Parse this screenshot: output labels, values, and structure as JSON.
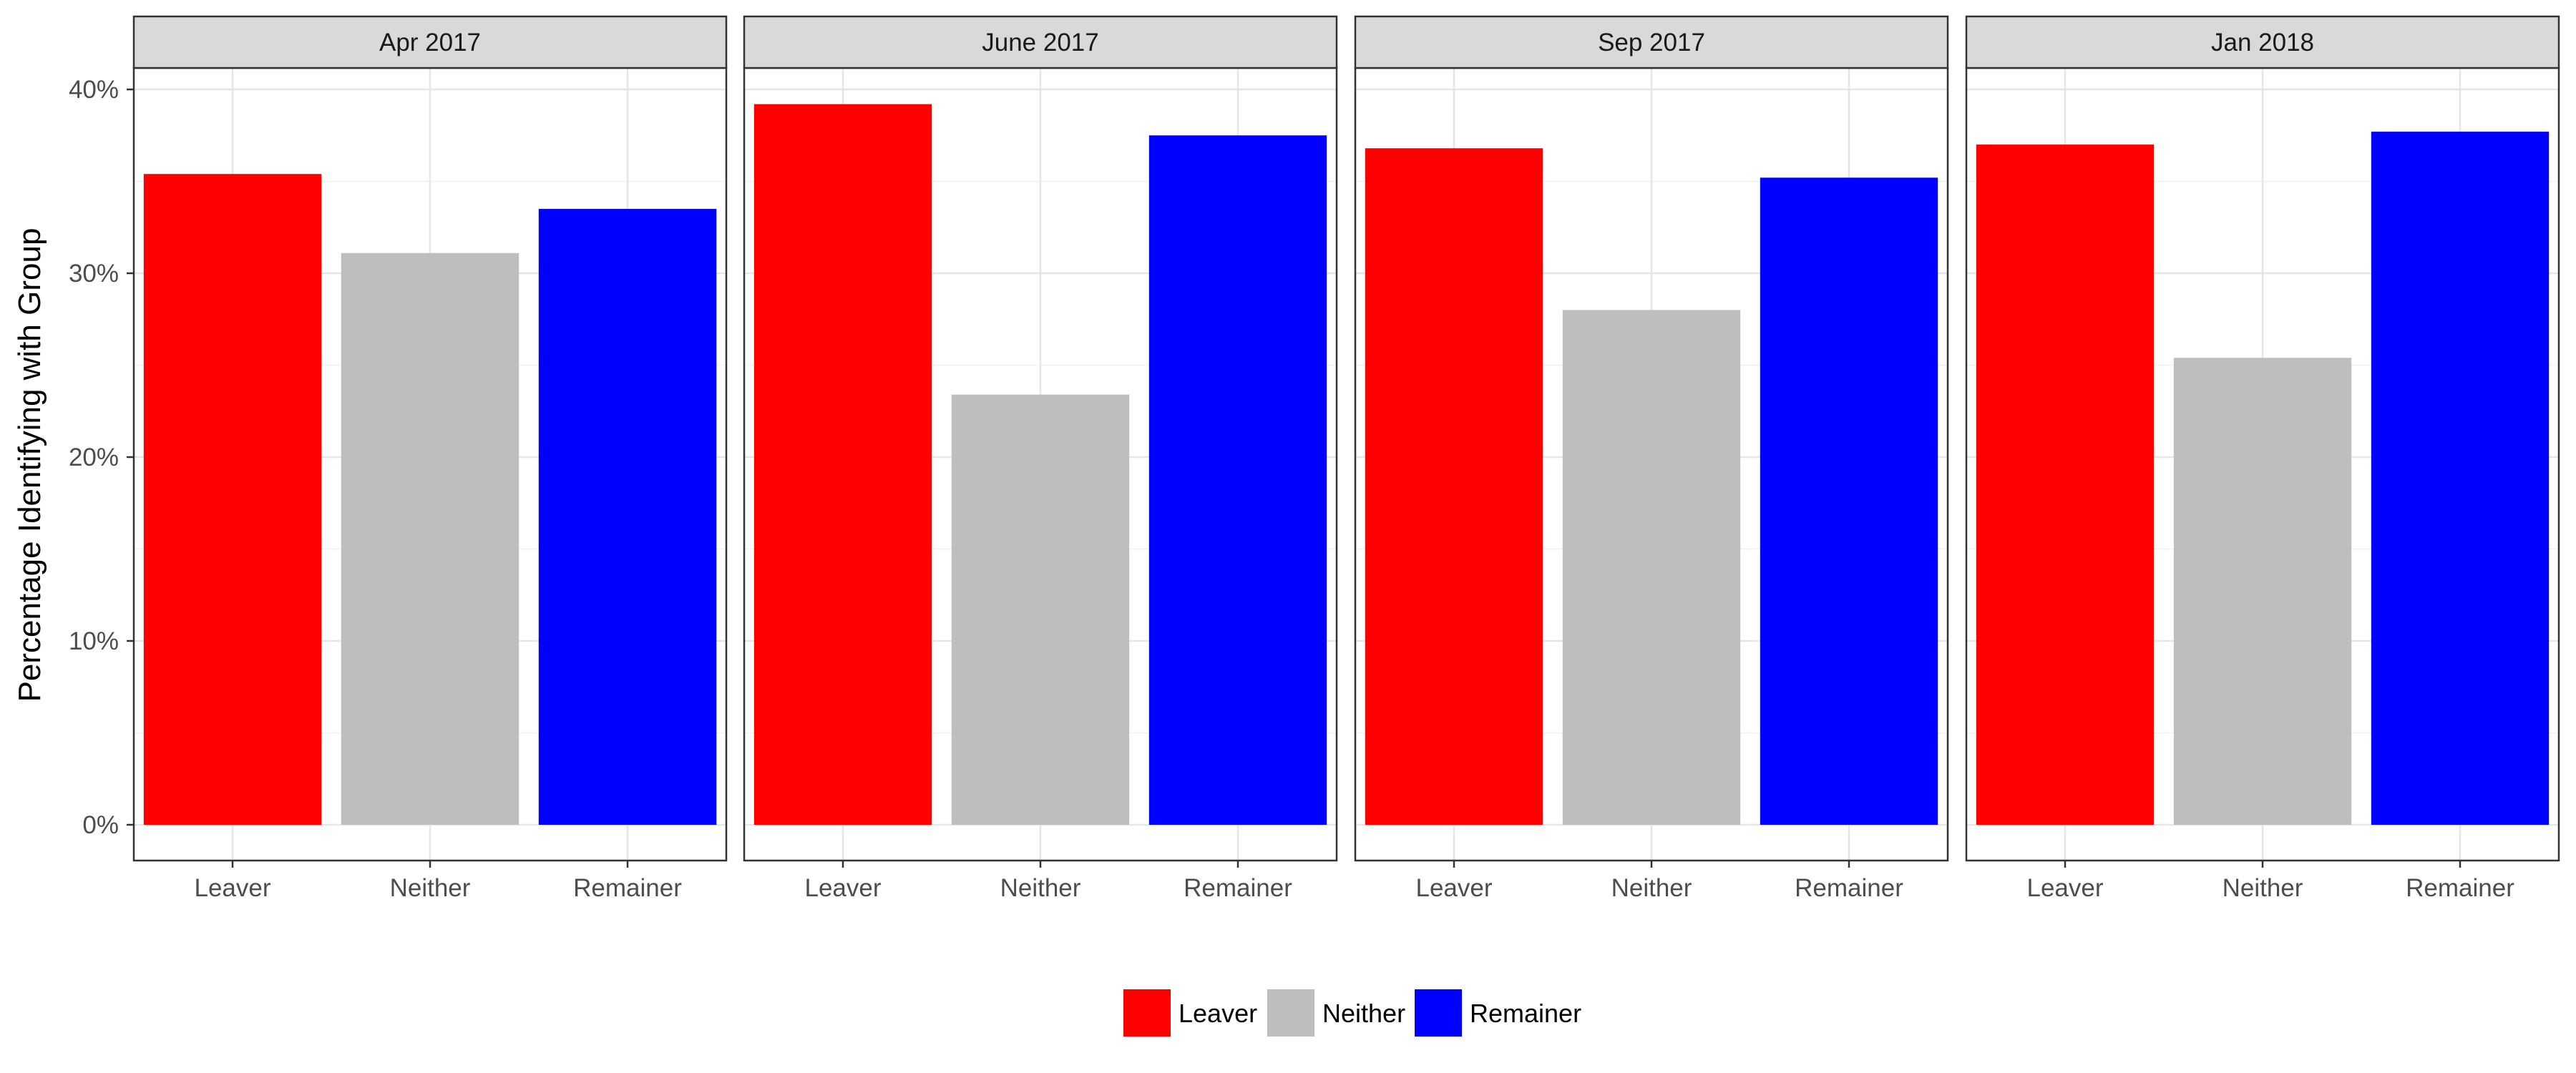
{
  "chart_data": {
    "type": "bar",
    "ylabel": "Percentage Identifying with Group",
    "xlabel": "",
    "ylim": [
      0,
      41
    ],
    "yticks": [
      0,
      10,
      20,
      30,
      40
    ],
    "ytick_labels": [
      "0%",
      "10%",
      "20%",
      "30%",
      "40%"
    ],
    "categories": [
      "Leaver",
      "Neither",
      "Remainer"
    ],
    "colors": {
      "Leaver": "#ff0000",
      "Neither": "#bebebe",
      "Remainer": "#0000ff"
    },
    "grid": true,
    "legend_position": "bottom",
    "legend": [
      "Leaver",
      "Neither",
      "Remainer"
    ],
    "panels": [
      {
        "title": "Apr 2017",
        "values": [
          35.4,
          31.1,
          33.5
        ]
      },
      {
        "title": "June 2017",
        "values": [
          39.2,
          23.4,
          37.5
        ]
      },
      {
        "title": "Sep 2017",
        "values": [
          36.8,
          28.0,
          35.2
        ]
      },
      {
        "title": "Jan 2018",
        "values": [
          37.0,
          25.4,
          37.7
        ]
      }
    ]
  }
}
